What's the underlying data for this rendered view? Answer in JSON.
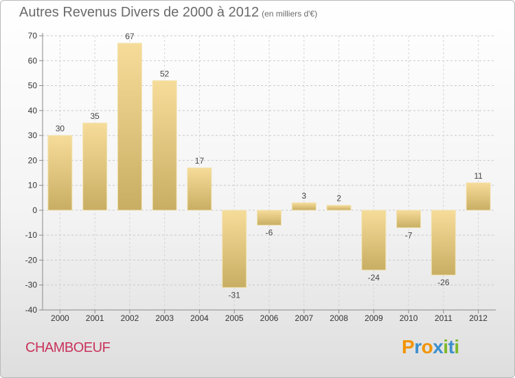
{
  "header": {
    "title": "Autres Revenus Divers de 2000 à 2012",
    "unit": "(en milliers d'€)"
  },
  "footer": {
    "city": "CHAMBOEUF",
    "logo_text": "Proxiti"
  },
  "colors": {
    "bar_light": "#f6dc99",
    "bar_dark": "#c8ae63",
    "city": "#c8325a",
    "logo_letters": [
      "#f29400",
      "#3d8fcc",
      "#f29400",
      "#3d8fcc",
      "#7cb828",
      "#3d8fcc",
      "#7cb828"
    ]
  },
  "chart_data": {
    "type": "bar",
    "title": "Autres Revenus Divers de 2000 à 2012",
    "subtitle": "(en milliers d'€)",
    "xlabel": "",
    "ylabel": "",
    "categories": [
      "2000",
      "2001",
      "2002",
      "2003",
      "2004",
      "2005",
      "2006",
      "2007",
      "2008",
      "2009",
      "2010",
      "2011",
      "2012"
    ],
    "values": [
      30,
      35,
      67,
      52,
      17,
      -31,
      -6,
      3,
      2,
      -24,
      -7,
      -26,
      11
    ],
    "ylim": [
      -40,
      70
    ],
    "yticks": [
      -40,
      -30,
      -20,
      -10,
      0,
      10,
      20,
      30,
      40,
      50,
      60,
      70
    ],
    "grid": "horizontal dashed",
    "legend": "none"
  }
}
